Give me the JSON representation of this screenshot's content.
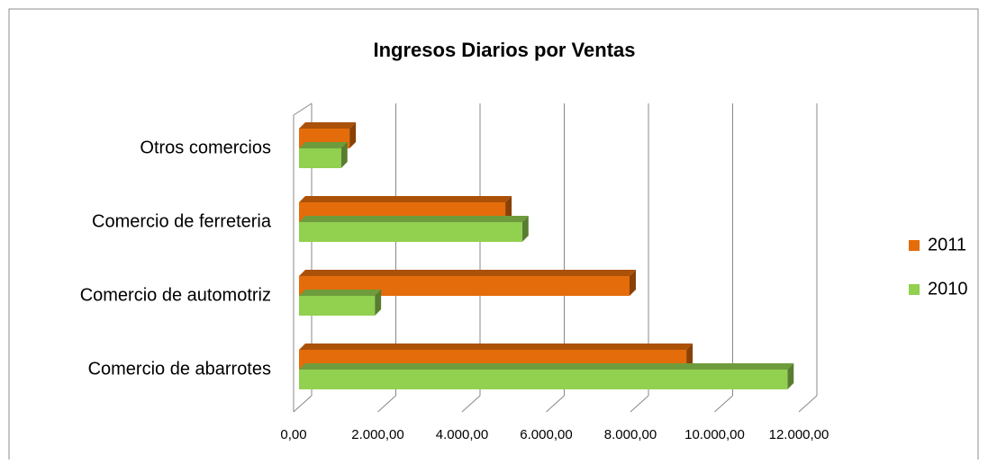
{
  "chart_data": {
    "type": "bar3d_horizontal",
    "title": "Ingresos Diarios por Ventas",
    "categories": [
      "Comercio de abarrotes",
      "Comercio de automotriz",
      "Comercio de ferreteria",
      "Otros comercios"
    ],
    "series": [
      {
        "name": "2011",
        "color": "#e46c0a",
        "values": [
          9200,
          7850,
          4900,
          1200
        ]
      },
      {
        "name": "2010",
        "color": "#92d050",
        "values": [
          11600,
          1800,
          5300,
          1000
        ]
      }
    ],
    "xlim": [
      0,
      12000
    ],
    "xticks": [
      {
        "value": 0,
        "label": "0,00"
      },
      {
        "value": 2000,
        "label": "2.000,00"
      },
      {
        "value": 4000,
        "label": "4.000,00"
      },
      {
        "value": 6000,
        "label": "6.000,00"
      },
      {
        "value": 8000,
        "label": "8.000,00"
      },
      {
        "value": 10000,
        "label": "10.000,00"
      },
      {
        "value": 12000,
        "label": "12.000,00"
      }
    ],
    "grid": true,
    "legend": "right"
  }
}
